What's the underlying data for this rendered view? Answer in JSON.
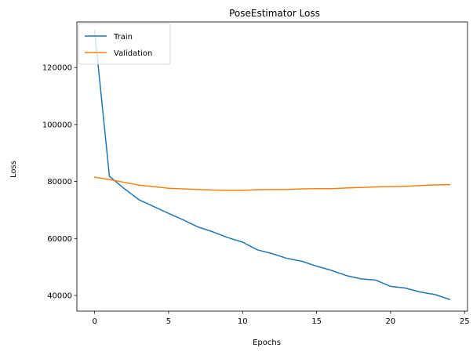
{
  "chart_data": {
    "type": "line",
    "title": "PoseEstimator Loss",
    "xlabel": "Epochs",
    "ylabel": "Loss",
    "xlim": [
      -1.2,
      25.2
    ],
    "ylim": [
      34500,
      136000
    ],
    "xticks": [
      0,
      5,
      10,
      15,
      20,
      25
    ],
    "yticks": [
      40000,
      60000,
      80000,
      100000,
      120000
    ],
    "grid": false,
    "legend": "upper-left",
    "x": [
      0,
      1,
      2,
      3,
      4,
      5,
      6,
      7,
      8,
      9,
      10,
      11,
      12,
      13,
      14,
      15,
      16,
      17,
      18,
      19,
      20,
      21,
      22,
      23,
      24
    ],
    "series": [
      {
        "name": "Train",
        "color": "#1f77b4",
        "values": [
          133000,
          81800,
          77500,
          73600,
          71200,
          68800,
          66500,
          64000,
          62300,
          60300,
          58700,
          56000,
          54700,
          53000,
          52000,
          50300,
          48800,
          47000,
          45800,
          45400,
          43200,
          42600,
          41200,
          40300,
          38600
        ]
      },
      {
        "name": "Validation",
        "color": "#ff7f0e",
        "values": [
          81500,
          80700,
          79700,
          78700,
          78200,
          77600,
          77400,
          77200,
          77000,
          76900,
          76900,
          77100,
          77200,
          77200,
          77400,
          77500,
          77500,
          77700,
          77900,
          78100,
          78200,
          78300,
          78600,
          78800,
          78900
        ]
      }
    ]
  }
}
